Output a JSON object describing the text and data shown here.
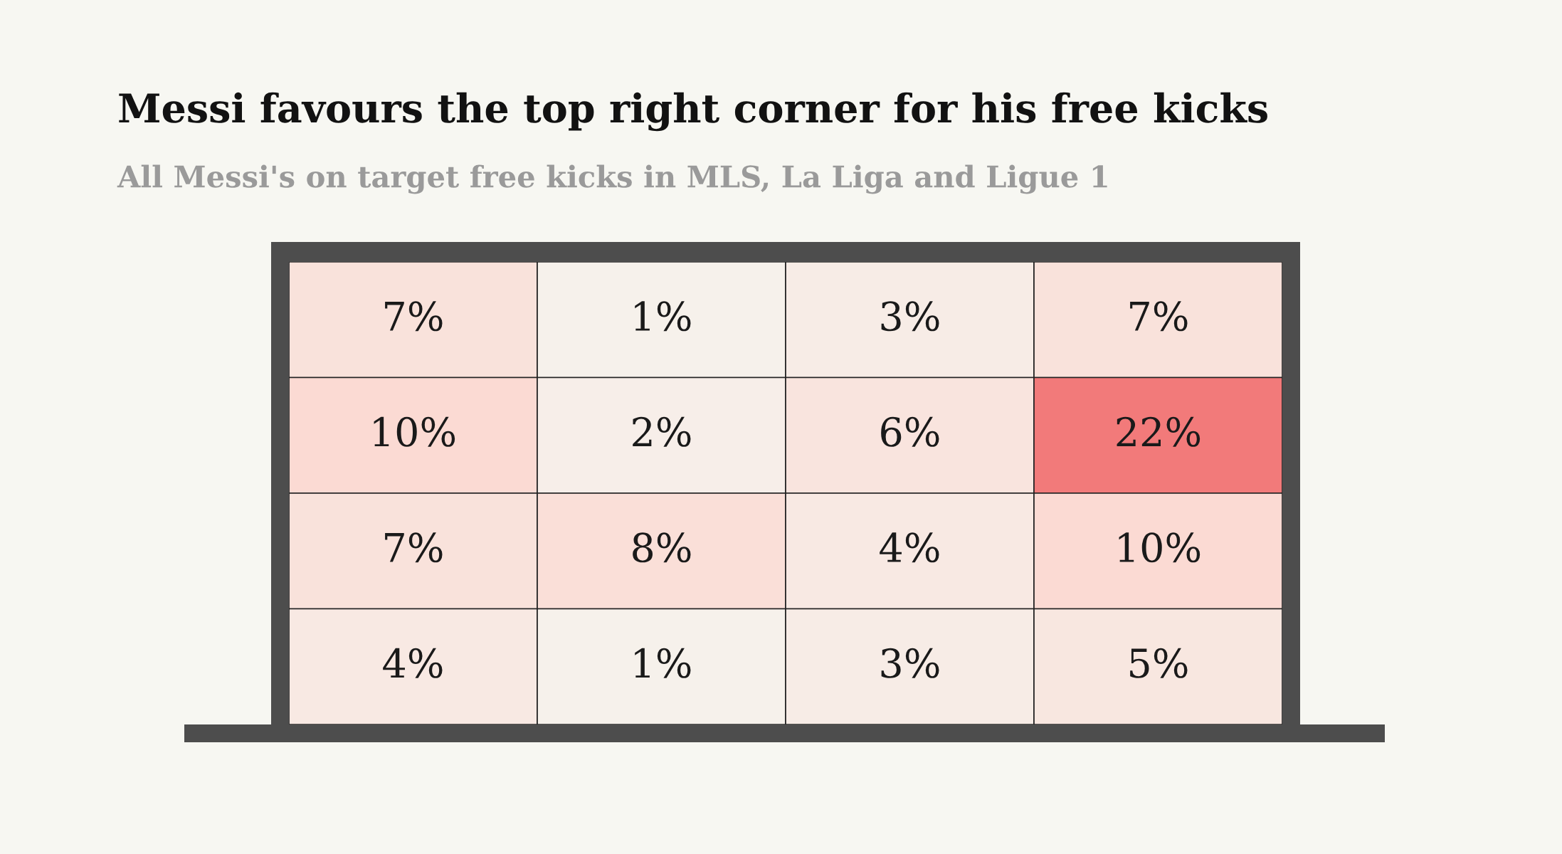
{
  "chart_data": {
    "type": "heatmap",
    "title": "Messi favours the top right corner for his free kicks",
    "subtitle": "All Messi's on target free kicks in MLS, La Liga and Ligue 1",
    "categories": [
      null,
      null,
      null,
      null
    ],
    "y_categories": [
      null,
      null,
      null,
      null
    ],
    "cells": [
      [
        7,
        1,
        3,
        7
      ],
      [
        10,
        2,
        6,
        22
      ],
      [
        7,
        8,
        4,
        10
      ],
      [
        4,
        1,
        3,
        5
      ]
    ],
    "cell_labels": [
      [
        "7%",
        "1%",
        "3%",
        "7%"
      ],
      [
        "10%",
        "2%",
        "6%",
        "22%"
      ],
      [
        "7%",
        "8%",
        "4%",
        "10%"
      ],
      [
        "4%",
        "1%",
        "3%",
        "5%"
      ]
    ]
  }
}
